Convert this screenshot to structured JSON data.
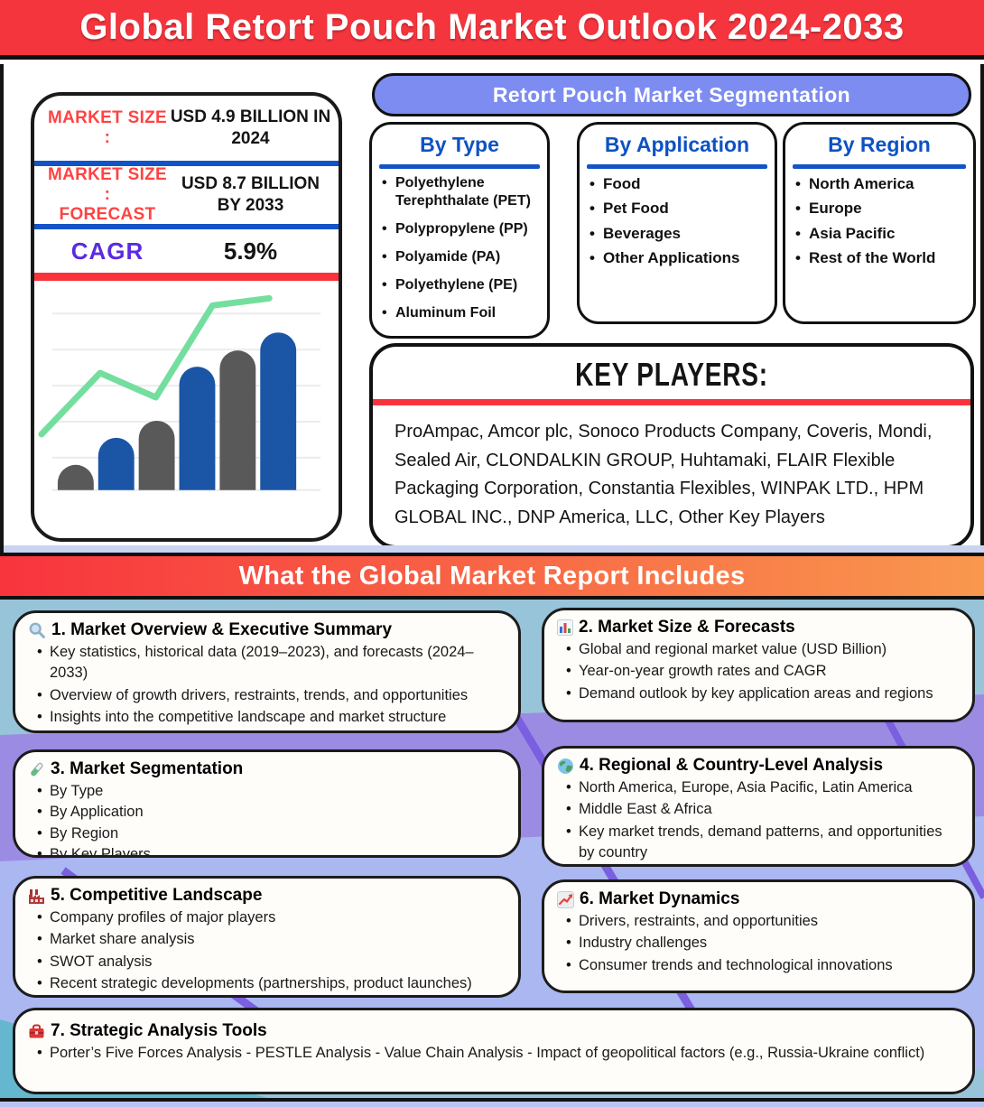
{
  "header": {
    "title": "Global Retort Pouch Market Outlook 2024-2033"
  },
  "market_stats": {
    "size_label": "MARKET SIZE :",
    "size_value": "USD 4.9 BILLION IN 2024",
    "forecast_label_line1": "MARKET SIZE :",
    "forecast_label_line2": "FORECAST",
    "forecast_value": "USD 8.7 BILLION BY 2033",
    "cagr_label": "CAGR",
    "cagr_value": "5.9%"
  },
  "segmentation": {
    "title": "Retort Pouch Market Segmentation",
    "groups": [
      {
        "title": "By Type",
        "items": [
          "Polyethylene Terephthalate (PET)",
          "Polypropylene (PP)",
          "Polyamide (PA)",
          "Polyethylene (PE)",
          "Aluminum Foil"
        ]
      },
      {
        "title": "By Application",
        "items": [
          "Food",
          "Pet Food",
          "Beverages",
          "Other Applications"
        ]
      },
      {
        "title": "By Region",
        "items": [
          "North America",
          "Europe",
          "Asia Pacific",
          "Rest of the World"
        ]
      }
    ]
  },
  "key_players": {
    "title": "KEY PLAYERS:",
    "text": "ProAmpac, Amcor plc, Sonoco Products Company, Coveris, Mondi, Sealed Air, CLONDALKIN GROUP, Huhtamaki, FLAIR Flexible Packaging Corporation, Constantia Flexibles, WINPAK LTD., HPM GLOBAL INC., DNP America, LLC, Other Key Players"
  },
  "report_banner": {
    "title": "What the Global Market Report Includes"
  },
  "report_sections": [
    {
      "icon": "search-icon",
      "title": "1. Market Overview & Executive Summary",
      "bullets": [
        "Key statistics, historical data (2019–2023), and forecasts (2024–2033)",
        "Overview of growth drivers, restraints, trends, and opportunities",
        "Insights into the competitive landscape and market structure"
      ]
    },
    {
      "icon": "bar-chart-icon",
      "title": "2. Market Size & Forecasts",
      "bullets": [
        "Global and regional market value (USD Billion)",
        "Year-on-year growth rates and CAGR",
        "Demand outlook by key application areas and regions"
      ]
    },
    {
      "icon": "test-tube-icon",
      "title": "3. Market Segmentation",
      "bullets": [
        "By Type",
        "By Application",
        "By Region",
        "By Key Players"
      ]
    },
    {
      "icon": "globe-icon",
      "title": "4. Regional & Country-Level Analysis",
      "bullets": [
        "North America, Europe, Asia Pacific, Latin America",
        "Middle East & Africa",
        "Key market trends, demand patterns, and opportunities by country"
      ]
    },
    {
      "icon": "factory-icon",
      "title": "5. Competitive Landscape",
      "bullets": [
        "Company profiles of major players",
        "Market share analysis",
        "SWOT analysis",
        "Recent strategic developments (partnerships, product launches)"
      ]
    },
    {
      "icon": "chart-up-icon",
      "title": "6. Market Dynamics",
      "bullets": [
        "Drivers, restraints, and opportunities",
        "Industry challenges",
        "Consumer trends and technological innovations"
      ]
    },
    {
      "icon": "toolbox-icon",
      "title": "7. Strategic Analysis Tools",
      "bullets": [
        "Porter’s Five Forces Analysis  - PESTLE Analysis   - Value Chain Analysis   - Impact of geopolitical factors (e.g., Russia-Ukraine conflict)"
      ]
    }
  ],
  "chart_data": {
    "type": "bar",
    "title": "",
    "categories": [
      "",
      "",
      "",
      "",
      "",
      ""
    ],
    "values": [
      28,
      58,
      77,
      137,
      155,
      175
    ],
    "trend_line_points": [
      [
        8,
        62
      ],
      [
        73,
        130
      ],
      [
        135,
        103
      ],
      [
        198,
        205
      ],
      [
        261,
        213
      ]
    ],
    "xlabel": "",
    "ylabel": "",
    "grid": true,
    "note_type": "decorative unlabeled growth chart: alternating gray/blue rounded bars with green trend line"
  },
  "colors": {
    "banner_red": "#f5353e",
    "divider_blue": "#1254c8",
    "divider_red": "#f8333c",
    "label_red": "#ff4343",
    "cagr_purple": "#5a2be0",
    "pill_blue": "#7c8cf0",
    "section_blue": "#0d52c4",
    "bar_gray": "#595959",
    "bar_blue": "#1b55a6",
    "line_green": "#74de9f",
    "orange_gradient_start": "#f8343d",
    "orange_gradient_end": "#f9984e",
    "bg_light_blue": "#98c4d9",
    "bg_purple": "#9c8be3",
    "bg_periwinkle": "#abb7f1"
  }
}
